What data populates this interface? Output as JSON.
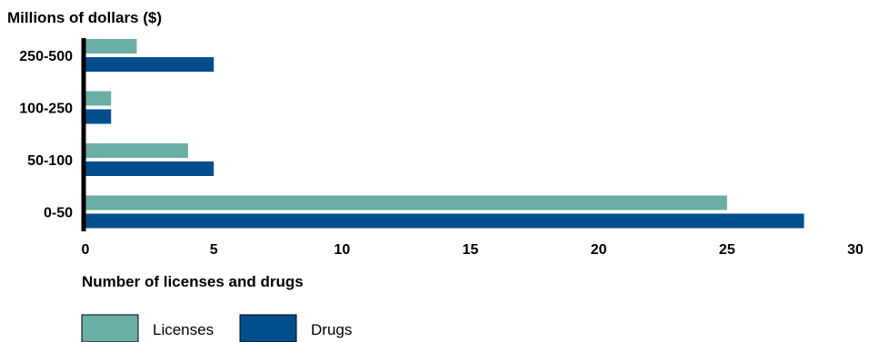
{
  "chart_data": {
    "type": "bar",
    "orientation": "horizontal",
    "ylabel": "Millions of dollars ($)",
    "xlabel": "Number of licenses and drugs",
    "categories": [
      "250-500",
      "100-250",
      "50-100",
      "0-50"
    ],
    "series": [
      {
        "name": "Licenses",
        "values": [
          2,
          1,
          4,
          25
        ],
        "color": "#6aaea6"
      },
      {
        "name": "Drugs",
        "values": [
          5,
          1,
          5,
          28
        ],
        "color": "#004e8c"
      }
    ],
    "xlim": [
      0,
      30
    ],
    "xticks": [
      0,
      5,
      10,
      15,
      20,
      25,
      30
    ],
    "grid": false,
    "legend": "bottom-left"
  }
}
